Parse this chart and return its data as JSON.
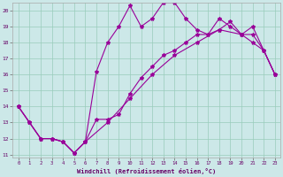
{
  "xlabel": "Windchill (Refroidissement éolien,°C)",
  "bg_color": "#cce8e8",
  "grid_color": "#99ccbb",
  "line_color": "#990099",
  "xlim": [
    -0.5,
    23.5
  ],
  "ylim": [
    10.8,
    20.5
  ],
  "xticks": [
    0,
    1,
    2,
    3,
    4,
    5,
    6,
    7,
    8,
    9,
    10,
    11,
    12,
    13,
    14,
    15,
    16,
    17,
    18,
    19,
    20,
    21,
    22,
    23
  ],
  "yticks": [
    11,
    12,
    13,
    14,
    15,
    16,
    17,
    18,
    19,
    20
  ],
  "line1_x": [
    0,
    1,
    2,
    3,
    4,
    5,
    6,
    7,
    8,
    9,
    10,
    11,
    12,
    13,
    14,
    15,
    16,
    17,
    18,
    19,
    20,
    21,
    22,
    23
  ],
  "line1_y": [
    14,
    13,
    12,
    12,
    11.8,
    11.1,
    11.8,
    13.2,
    13.2,
    13.5,
    14.8,
    15.8,
    16.5,
    17.2,
    17.5,
    18.0,
    18.5,
    18.5,
    18.8,
    19.3,
    18.5,
    18.5,
    17.5,
    16.0
  ],
  "line2_x": [
    0,
    1,
    2,
    3,
    4,
    5,
    6,
    7,
    8,
    9,
    10,
    11,
    12,
    13,
    14,
    15,
    16,
    17,
    18,
    19,
    20,
    21,
    22,
    23
  ],
  "line2_y": [
    14,
    13,
    12,
    12,
    11.8,
    11.1,
    11.8,
    16.2,
    18.0,
    19.0,
    20.3,
    19.0,
    19.5,
    20.5,
    20.5,
    19.5,
    18.8,
    18.5,
    19.5,
    19.0,
    18.5,
    18.0,
    17.5,
    16.0
  ],
  "line3_x": [
    0,
    1,
    2,
    3,
    4,
    5,
    6,
    8,
    10,
    12,
    14,
    16,
    18,
    20,
    21,
    22,
    23
  ],
  "line3_y": [
    14,
    13,
    12,
    12,
    11.8,
    11.1,
    11.8,
    13.0,
    14.5,
    16.0,
    17.2,
    18.0,
    18.8,
    18.5,
    19.0,
    17.5,
    16.0
  ],
  "marker": "*",
  "markersize": 3,
  "linewidth": 0.8
}
